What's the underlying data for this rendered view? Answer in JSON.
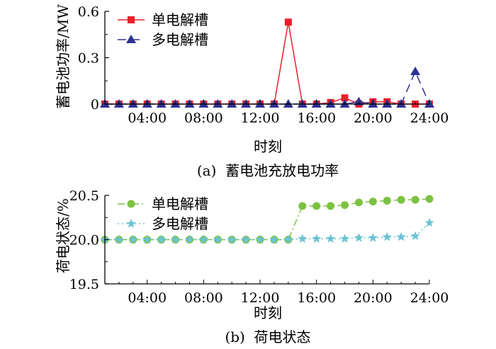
{
  "chart_data": [
    {
      "type": "line",
      "caption": "(a)  蓄电池充放电功率",
      "xlabel": "时刻",
      "ylabel": "蓄电池功率/MW",
      "x": [
        1,
        2,
        3,
        4,
        5,
        6,
        7,
        8,
        9,
        10,
        11,
        12,
        13,
        14,
        15,
        16,
        17,
        18,
        19,
        20,
        21,
        22,
        23,
        24
      ],
      "xlim": [
        1,
        24
      ],
      "xticks": [
        "04:00",
        "08:00",
        "12:00",
        "16:00",
        "20:00",
        "24:00"
      ],
      "xtick_values": [
        4,
        8,
        12,
        16,
        20,
        24
      ],
      "ylim": [
        0,
        0.6
      ],
      "yticks": [
        "0",
        "0.3",
        "0.6"
      ],
      "ytick_values": [
        0,
        0.3,
        0.6
      ],
      "legend_position": "top-left",
      "series": [
        {
          "name": "单电解槽",
          "color": "#e8202a",
          "marker": "square",
          "dash": "none",
          "values": [
            0,
            0,
            0,
            0,
            0,
            0,
            0,
            0,
            0,
            0,
            0,
            0,
            0,
            0.53,
            0,
            0,
            0.01,
            0.04,
            0,
            0.015,
            0.015,
            0,
            0,
            0
          ]
        },
        {
          "name": "多电解槽",
          "color": "#2e3192",
          "marker": "triangle",
          "dash": "dashed",
          "values": [
            0,
            0,
            0,
            0,
            0,
            0,
            0,
            0,
            0,
            0,
            0,
            0,
            0,
            0,
            0,
            0,
            0,
            0,
            0.015,
            0,
            0,
            0,
            0.21,
            0
          ]
        }
      ]
    },
    {
      "type": "line",
      "caption": "(b)  荷电状态",
      "xlabel": "时刻",
      "ylabel": "荷电状态/%",
      "x": [
        1,
        2,
        3,
        4,
        5,
        6,
        7,
        8,
        9,
        10,
        11,
        12,
        13,
        14,
        15,
        16,
        17,
        18,
        19,
        20,
        21,
        22,
        23,
        24
      ],
      "xlim": [
        1,
        24
      ],
      "xticks": [
        "04:00",
        "08:00",
        "12:00",
        "16:00",
        "20:00",
        "24:00"
      ],
      "xtick_values": [
        4,
        8,
        12,
        16,
        20,
        24
      ],
      "ylim": [
        19.5,
        20.5
      ],
      "yticks": [
        "19.5",
        "20.0",
        "20.5"
      ],
      "ytick_values": [
        19.5,
        20.0,
        20.5
      ],
      "legend_position": "top-left",
      "series": [
        {
          "name": "单电解槽",
          "color": "#7cc242",
          "marker": "circle",
          "dash": "dashdot",
          "values": [
            20,
            20,
            20,
            20,
            20,
            20,
            20,
            20,
            20,
            20,
            20,
            20,
            20,
            20,
            20.38,
            20.38,
            20.38,
            20.39,
            20.42,
            20.43,
            20.44,
            20.45,
            20.45,
            20.46
          ]
        },
        {
          "name": "多电解槽",
          "color": "#6cc3d3",
          "marker": "star",
          "dash": "dotted",
          "values": [
            20,
            20,
            20,
            20,
            20,
            20,
            20,
            20,
            20,
            20,
            20,
            20,
            20,
            20,
            20.01,
            20.01,
            20.01,
            20.01,
            20.02,
            20.02,
            20.03,
            20.03,
            20.04,
            20.19
          ]
        }
      ]
    }
  ]
}
